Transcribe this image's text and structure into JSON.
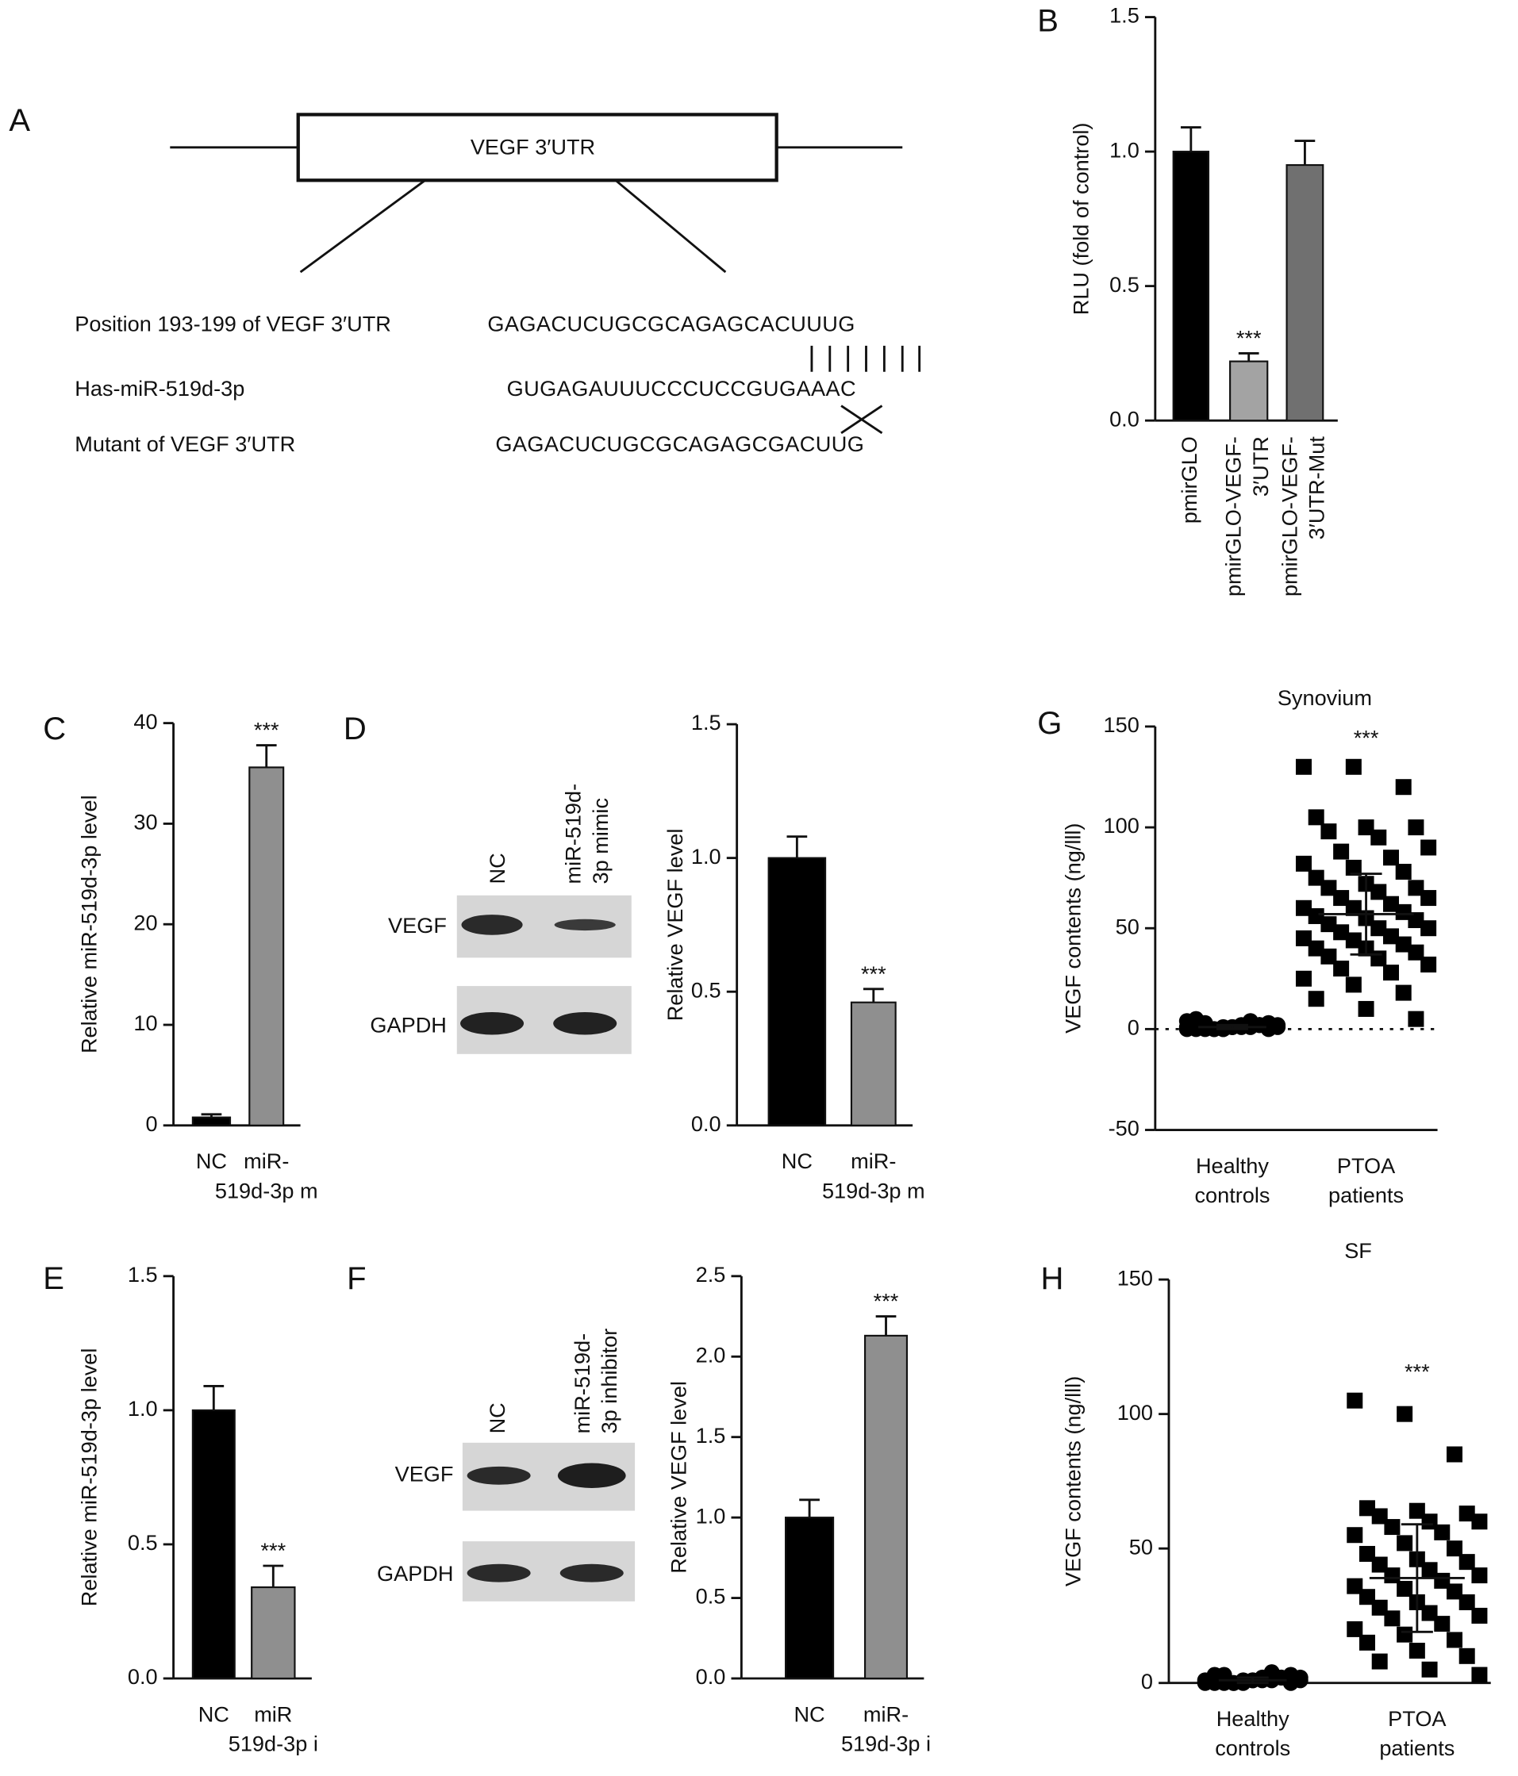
{
  "panel_a": {
    "label": "A",
    "box": "VEGF 3′UTR",
    "rows": [
      {
        "name": "Position 193-199 of VEGF 3′UTR",
        "seq": "GAGACUCUGCGCAGAGCACUUUG"
      },
      {
        "name": "Has-miR-519d-3p",
        "seq": "GUGAGAUUUCCCUCCGUGAAAC"
      },
      {
        "name": "Mutant of VEGF 3′UTR",
        "seq": "GAGACUCUGCGCAGAGCGACUUG"
      }
    ]
  },
  "blots": [
    {
      "label": "D",
      "lanes": [
        [
          "NC"
        ],
        [
          "miR-519d-",
          "3p mimic"
        ]
      ],
      "bands": [
        "VEGF",
        "GAPDH"
      ]
    },
    {
      "label": "F",
      "lanes": [
        [
          "NC"
        ],
        [
          "miR-519d-",
          "3p inhibitor"
        ]
      ],
      "bands": [
        "VEGF",
        "GAPDH"
      ]
    }
  ],
  "chart_data": [
    {
      "type": "bar",
      "label": "B",
      "ylabel": "RLU (fold of control)",
      "categories": [
        [
          "pmirGLO"
        ],
        [
          "pmirGLO-VEGF-",
          "3′UTR"
        ],
        [
          "pmirGLO-VEGF-",
          "3′UTR-Mut"
        ]
      ],
      "values": [
        1.0,
        0.22,
        0.95
      ],
      "errors": [
        0.09,
        0.03,
        0.09
      ],
      "colors": [
        "#000000",
        "#a3a3a3",
        "#707070"
      ],
      "rotate_labels": true,
      "annotations": [
        {
          "index": 1,
          "text": "***"
        }
      ],
      "ylim": [
        0,
        1.5
      ],
      "yticks": [
        {
          "value": 0,
          "label": "0.0"
        },
        {
          "value": 0.5,
          "label": "0.5"
        },
        {
          "value": 1,
          "label": "1.0"
        },
        {
          "value": 1.5,
          "label": "1.5"
        }
      ]
    },
    {
      "type": "bar",
      "label": "C",
      "ylabel": "Relative miR-519d-3p level",
      "categories": [
        [
          "NC"
        ],
        [
          "miR-",
          "519d-3p m"
        ]
      ],
      "values": [
        0.8,
        35.6
      ],
      "errors": [
        0.3,
        2.2
      ],
      "colors": [
        "#000000",
        "#8f8f8f"
      ],
      "annotations": [
        {
          "index": 1,
          "text": "***"
        }
      ],
      "ylim": [
        0,
        40
      ],
      "yticks": [
        0,
        10,
        20,
        30,
        40
      ]
    },
    {
      "type": "bar",
      "label": "",
      "ylabel": "Relative VEGF level",
      "categories": [
        [
          "NC"
        ],
        [
          "miR-",
          "519d-3p m"
        ]
      ],
      "values": [
        1.0,
        0.46
      ],
      "errors": [
        0.08,
        0.05
      ],
      "colors": [
        "#000000",
        "#8f8f8f"
      ],
      "annotations": [
        {
          "index": 1,
          "text": "***"
        }
      ],
      "ylim": [
        0,
        1.5
      ],
      "yticks": [
        {
          "value": 0,
          "label": "0.0"
        },
        {
          "value": 0.5,
          "label": "0.5"
        },
        {
          "value": 1,
          "label": "1.0"
        },
        {
          "value": 1.5,
          "label": "1.5"
        }
      ]
    },
    {
      "type": "bar",
      "label": "E",
      "ylabel": "Relative miR-519d-3p level",
      "categories": [
        [
          "NC"
        ],
        [
          "miR",
          "519d-3p i"
        ]
      ],
      "values": [
        1.0,
        0.34
      ],
      "errors": [
        0.09,
        0.08
      ],
      "colors": [
        "#000000",
        "#8f8f8f"
      ],
      "annotations": [
        {
          "index": 1,
          "text": "***"
        }
      ],
      "ylim": [
        0,
        1.5
      ],
      "yticks": [
        {
          "value": 0,
          "label": "0.0"
        },
        {
          "value": 0.5,
          "label": "0.5"
        },
        {
          "value": 1,
          "label": "1.0"
        },
        {
          "value": 1.5,
          "label": "1.5"
        }
      ]
    },
    {
      "type": "bar",
      "label": "",
      "ylabel": "Relative VEGF level",
      "categories": [
        [
          "NC"
        ],
        [
          "miR-",
          "519d-3p i"
        ]
      ],
      "values": [
        1.0,
        2.13
      ],
      "errors": [
        0.11,
        0.12
      ],
      "colors": [
        "#000000",
        "#8f8f8f"
      ],
      "annotations": [
        {
          "index": 1,
          "text": "***"
        }
      ],
      "ylim": [
        0,
        2.5
      ],
      "yticks": [
        {
          "value": 0,
          "label": "0.0"
        },
        {
          "value": 0.5,
          "label": "0.5"
        },
        {
          "value": 1,
          "label": "1.0"
        },
        {
          "value": 1.5,
          "label": "1.5"
        },
        {
          "value": 2,
          "label": "2.0"
        },
        {
          "value": 2.5,
          "label": "2.5"
        }
      ]
    },
    {
      "type": "dot",
      "label": "G",
      "title": "Synovium",
      "ylabel": "VEGF contents (ng/lll)",
      "categories": [
        [
          "Healthy",
          "controls"
        ],
        [
          "PTOA",
          "patients"
        ]
      ],
      "markers": [
        "circle",
        "square"
      ],
      "color": "#000000",
      "zero_line": true,
      "groups": [
        {
          "values": [
            0,
            1,
            2,
            0,
            1,
            3,
            0,
            2,
            1,
            0,
            4,
            1,
            0,
            2,
            5,
            1,
            0,
            3,
            1,
            2,
            0,
            1,
            4,
            0,
            2
          ],
          "mean": 1,
          "sd": 1
        },
        {
          "values": [
            130,
            130,
            120,
            105,
            100,
            100,
            98,
            95,
            90,
            88,
            85,
            82,
            80,
            78,
            75,
            72,
            70,
            70,
            68,
            65,
            65,
            62,
            60,
            60,
            58,
            56,
            55,
            54,
            52,
            50,
            50,
            48,
            46,
            45,
            44,
            42,
            40,
            40,
            38,
            36,
            35,
            32,
            30,
            28,
            25,
            22,
            18,
            15,
            10,
            5
          ],
          "mean": 57,
          "sd": 20
        }
      ],
      "annotations": [
        {
          "index": 1,
          "text": "***"
        }
      ],
      "ylim": [
        -50,
        150
      ],
      "yticks": [
        -50,
        0,
        50,
        100,
        150
      ]
    },
    {
      "type": "dot",
      "label": "H",
      "title": "SF",
      "ylabel": "VEGF contents (ng/lll)",
      "categories": [
        [
          "Healthy",
          "controls"
        ],
        [
          "PTOA",
          "patients"
        ]
      ],
      "markers": [
        "circle",
        "square"
      ],
      "color": "#000000",
      "groups": [
        {
          "values": [
            0,
            1,
            2,
            0,
            1,
            3,
            0,
            2,
            1,
            0,
            4,
            1,
            0,
            2,
            3,
            1,
            0,
            3,
            1,
            2,
            0,
            1
          ],
          "mean": 1,
          "sd": 1
        },
        {
          "values": [
            105,
            100,
            85,
            65,
            64,
            63,
            62,
            60,
            60,
            58,
            56,
            55,
            52,
            50,
            48,
            46,
            45,
            44,
            42,
            40,
            40,
            38,
            36,
            35,
            34,
            32,
            30,
            30,
            28,
            26,
            25,
            24,
            22,
            20,
            18,
            16,
            15,
            12,
            10,
            8,
            5,
            3
          ],
          "mean": 39,
          "sd": 20
        }
      ],
      "annotations": [
        {
          "index": 1,
          "text": "***"
        }
      ],
      "ylim": [
        0,
        150
      ],
      "yticks": [
        0,
        50,
        100,
        150
      ]
    }
  ]
}
